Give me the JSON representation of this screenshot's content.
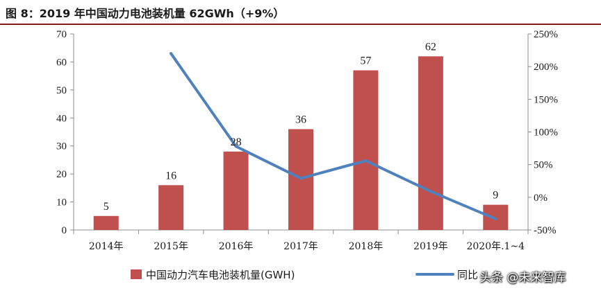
{
  "title": "图 8：2019 年中国动力电池装机量 62GWh（+9%）",
  "colors": {
    "bar": "#c0504d",
    "line": "#4f81bd",
    "rule": "#8b1a1a"
  },
  "watermark": "头条 @未来智库",
  "chart_data": {
    "type": "bar",
    "categories": [
      "2014年",
      "2015年",
      "2016年",
      "2017年",
      "2018年",
      "2019年",
      "2020年.1~4"
    ],
    "series": [
      {
        "name": "中国动力汽车电池装机量(GWH)",
        "type": "bar",
        "axis": "left",
        "values": [
          5,
          16,
          28,
          36,
          57,
          62,
          9
        ]
      },
      {
        "name": "同比",
        "type": "line",
        "axis": "right",
        "values": [
          null,
          220,
          78,
          29,
          56,
          9,
          -33
        ]
      }
    ],
    "data_labels": [
      "5",
      "16",
      "28",
      "36",
      "57",
      "62",
      "9"
    ],
    "y_left": {
      "lim": [
        0,
        70
      ],
      "ticks": [
        0,
        10,
        20,
        30,
        40,
        50,
        60,
        70
      ]
    },
    "y_right": {
      "lim": [
        -50,
        250
      ],
      "ticks": [
        -50,
        0,
        50,
        100,
        150,
        200,
        250
      ],
      "tick_labels": [
        "-50%",
        "0%",
        "50%",
        "100%",
        "150%",
        "200%",
        "250%"
      ]
    },
    "grid": false,
    "legend": "bottom"
  }
}
